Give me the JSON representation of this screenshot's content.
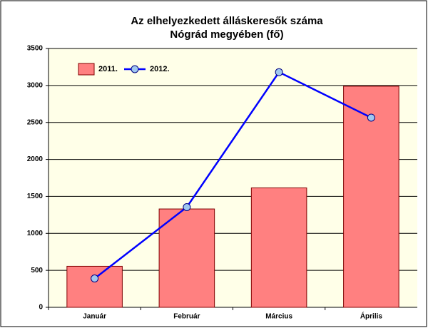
{
  "chart_data": {
    "type": "bar",
    "title": [
      "Az elhelyezkedett álláskeresők száma",
      "Nógrád megyében (fő)"
    ],
    "categories": [
      "Január",
      "Február",
      "Március",
      "Április"
    ],
    "series": [
      {
        "name": "2011.",
        "type": "bar",
        "color": "#ff8080",
        "values": [
          555,
          1330,
          1615,
          2990
        ]
      },
      {
        "name": "2012.",
        "type": "line",
        "color": "#0000ff",
        "values": [
          390,
          1355,
          3180,
          2565
        ]
      }
    ],
    "ylim": [
      0,
      3500
    ],
    "yticks": [
      0,
      500,
      1000,
      1500,
      2000,
      2500,
      3000,
      3500
    ],
    "grid": true,
    "legend": "top-left"
  }
}
